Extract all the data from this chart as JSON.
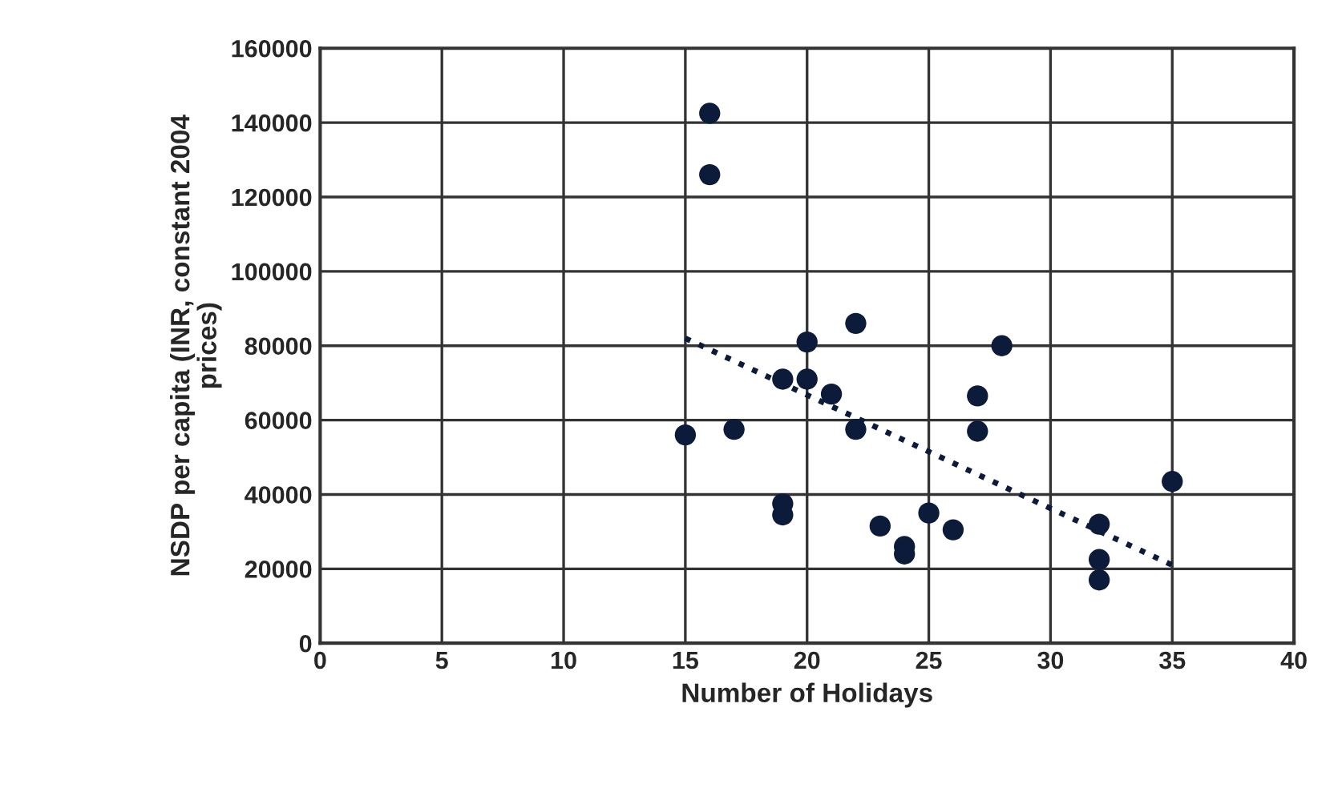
{
  "chart_data": {
    "type": "scatter",
    "xlabel": "Number of Holidays",
    "ylabel": "NSDP per capita (INR, constant 2004\nprices)",
    "series": [
      {
        "color": "#0d1b3a",
        "marker": "circle",
        "x": [
          15,
          16,
          16,
          17,
          19,
          19,
          19,
          20,
          20,
          21,
          22,
          22,
          23,
          24,
          24,
          25,
          26,
          27,
          27,
          28,
          32,
          32,
          32,
          35
        ],
        "values": [
          56000,
          142500,
          126000,
          57500,
          71000,
          37500,
          34500,
          81000,
          71000,
          67000,
          86000,
          57500,
          31500,
          26000,
          24000,
          35000,
          30500,
          66500,
          57000,
          80000,
          32000,
          22500,
          17000,
          43500
        ]
      },
      {
        "type": "line",
        "color": "#0d1b3a",
        "line_style": "dotted",
        "marker": "none",
        "x": [
          15,
          35
        ],
        "values": [
          82000,
          21000
        ]
      }
    ],
    "xlim": [
      0,
      40
    ],
    "xticks": [
      0,
      5,
      10,
      15,
      20,
      25,
      30,
      35,
      40
    ],
    "ylim": [
      0,
      160000
    ],
    "yticks": [
      0,
      20000,
      40000,
      60000,
      80000,
      100000,
      120000,
      140000,
      160000
    ],
    "grid": true,
    "legend": false
  }
}
